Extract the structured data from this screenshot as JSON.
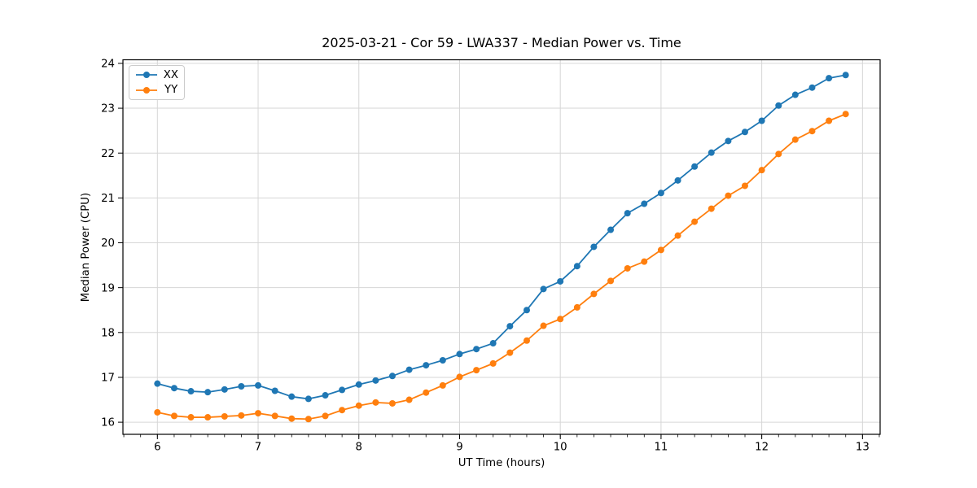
{
  "chart_data": {
    "type": "line",
    "title": "2025-03-21 - Cor 59 - LWA337 - Median Power vs. Time",
    "xlabel": "UT Time (hours)",
    "ylabel": "Median Power (CPU)",
    "xlim": [
      5.658,
      13.175
    ],
    "ylim": [
      15.73,
      24.08
    ],
    "x_ticks": [
      6,
      7,
      8,
      9,
      10,
      11,
      12,
      13
    ],
    "y_ticks": [
      16,
      17,
      18,
      19,
      20,
      21,
      22,
      23,
      24
    ],
    "x_minor_tick_step": 0.166667,
    "grid": true,
    "legend_position": "upper left",
    "grid_color": "#d6d6d6",
    "spine_color": "#000000",
    "x": [
      6.0,
      6.167,
      6.333,
      6.5,
      6.667,
      6.833,
      7.0,
      7.167,
      7.333,
      7.5,
      7.667,
      7.833,
      8.0,
      8.167,
      8.333,
      8.5,
      8.667,
      8.833,
      9.0,
      9.167,
      9.333,
      9.5,
      9.667,
      9.833,
      10.0,
      10.167,
      10.333,
      10.5,
      10.667,
      10.833,
      11.0,
      11.167,
      11.333,
      11.5,
      11.667,
      11.833,
      12.0,
      12.167,
      12.333,
      12.5,
      12.667,
      12.833
    ],
    "series": [
      {
        "name": "XX",
        "color": "#1f77b4",
        "values": [
          16.86,
          16.76,
          16.69,
          16.67,
          16.73,
          16.8,
          16.82,
          16.7,
          16.57,
          16.52,
          16.6,
          16.72,
          16.84,
          16.93,
          17.03,
          17.17,
          17.27,
          17.38,
          17.52,
          17.63,
          17.76,
          18.14,
          18.5,
          18.97,
          19.14,
          19.48,
          19.91,
          20.29,
          20.66,
          20.87,
          21.11,
          21.39,
          21.7,
          22.01,
          22.27,
          22.47,
          22.72,
          23.06,
          23.3,
          23.46,
          23.67,
          23.74
        ]
      },
      {
        "name": "YY",
        "color": "#ff7f0e",
        "values": [
          16.22,
          16.14,
          16.11,
          16.11,
          16.13,
          16.15,
          16.2,
          16.14,
          16.08,
          16.07,
          16.14,
          16.27,
          16.37,
          16.44,
          16.42,
          16.5,
          16.66,
          16.82,
          17.01,
          17.16,
          17.31,
          17.55,
          17.82,
          18.15,
          18.3,
          18.56,
          18.86,
          19.15,
          19.43,
          19.58,
          19.84,
          20.16,
          20.47,
          20.76,
          21.05,
          21.27,
          21.62,
          21.98,
          22.3,
          22.49,
          22.72,
          22.87
        ]
      }
    ]
  }
}
